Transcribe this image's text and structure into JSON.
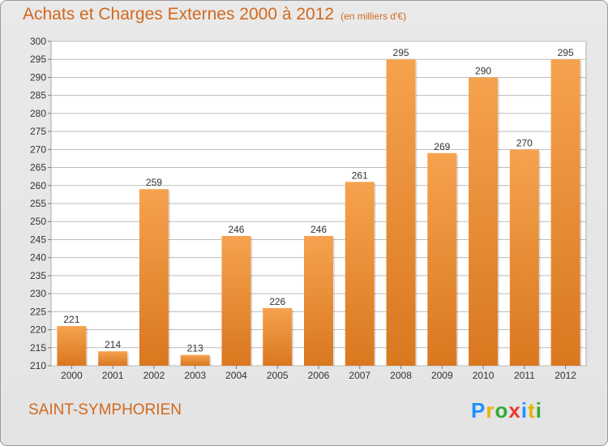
{
  "title": "Achats et Charges Externes 2000 à 2012",
  "subtitle": "(en milliers d'€)",
  "commune": "SAINT-SYMPHORIEN",
  "logo": {
    "text": "Proxiti",
    "letters": [
      "P",
      "r",
      "o",
      "x",
      "i",
      "t",
      "i"
    ],
    "colors": [
      "#1e90ff",
      "#e8b400",
      "#33aa33",
      "#e83a2e",
      "#1e90ff",
      "#e8b400",
      "#33aa33"
    ]
  },
  "colors": {
    "title": "#d2691e",
    "bar_top": "#f6a24e",
    "bar_bottom": "#d9781f",
    "grid": "#bdbdbd",
    "plot_bg": "#ffffff"
  },
  "chart_data": {
    "type": "bar",
    "categories": [
      "2000",
      "2001",
      "2002",
      "2003",
      "2004",
      "2005",
      "2006",
      "2007",
      "2008",
      "2009",
      "2010",
      "2011",
      "2012"
    ],
    "values": [
      221,
      214,
      259,
      213,
      246,
      226,
      246,
      261,
      295,
      269,
      290,
      270,
      295
    ],
    "ylim": [
      210,
      300
    ],
    "yticks": [
      210,
      215,
      220,
      225,
      230,
      235,
      240,
      245,
      250,
      255,
      260,
      265,
      270,
      275,
      280,
      285,
      290,
      295,
      300
    ],
    "grid": true,
    "data_labels": true
  }
}
